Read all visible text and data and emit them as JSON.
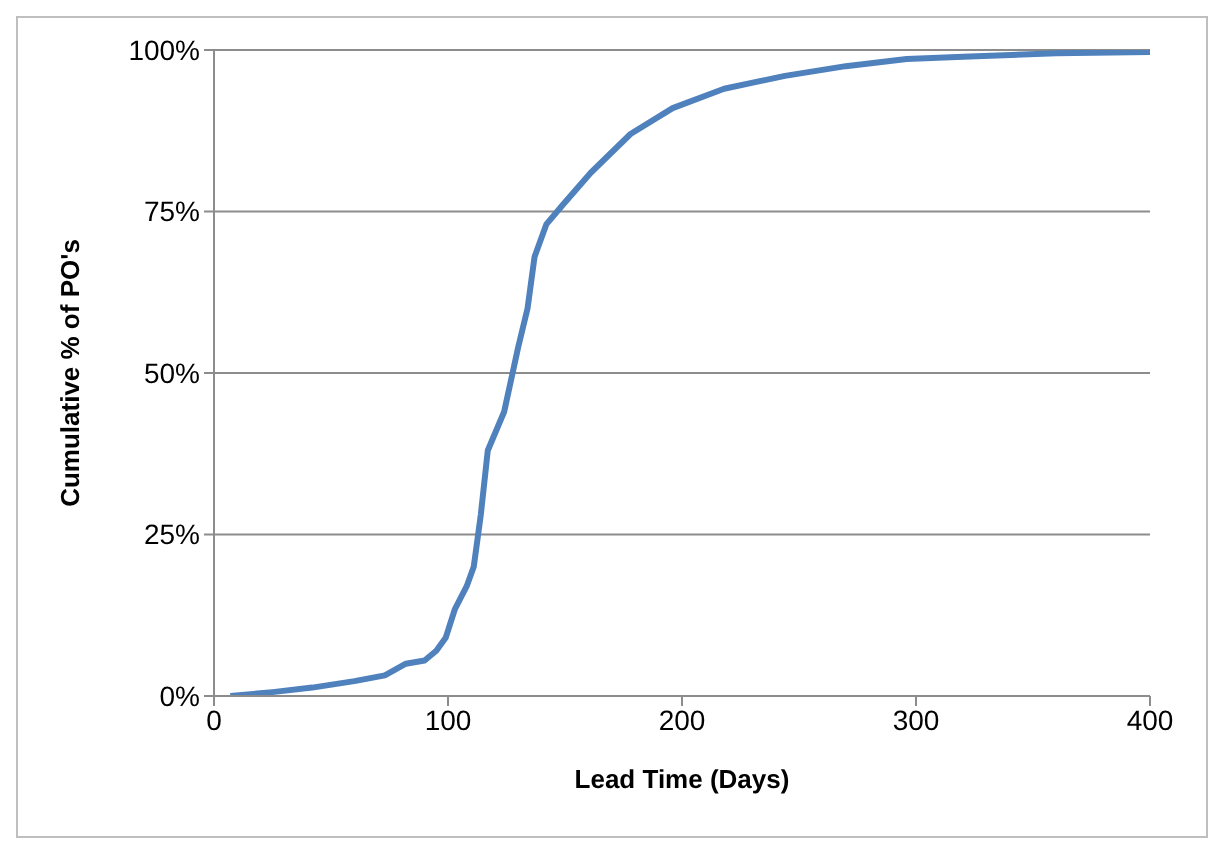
{
  "chart_data": {
    "type": "line",
    "xlabel": "Lead Time (Days)",
    "ylabel": "Cumulative % of PO's",
    "x": [
      7,
      25,
      42,
      60,
      73,
      82,
      90,
      95,
      99,
      103,
      108,
      111,
      114,
      117,
      124,
      130,
      134,
      137,
      142,
      149,
      161,
      178,
      196,
      218,
      244,
      270,
      296,
      323,
      360,
      400
    ],
    "series": [
      {
        "color": "#4f81bd",
        "values": [
          0,
          0.6,
          1.3,
          2.3,
          3.2,
          5,
          5.5,
          7,
          9,
          13.5,
          17,
          20,
          28,
          38,
          44,
          54,
          60,
          68,
          73,
          76,
          81,
          87,
          91,
          94,
          96,
          97.5,
          98.6,
          99,
          99.5,
          99.7
        ]
      }
    ],
    "xlim": [
      0,
      400
    ],
    "xticks": [
      0,
      100,
      200,
      300,
      400
    ],
    "ylim": [
      0,
      100
    ],
    "yticks": [
      {
        "value": 0,
        "label": "0%"
      },
      {
        "value": 25,
        "label": "25%"
      },
      {
        "value": 50,
        "label": "50%"
      },
      {
        "value": 75,
        "label": "75%"
      },
      {
        "value": 100,
        "label": "100%"
      }
    ],
    "grid": "y",
    "marker": "none",
    "line_style": "solid"
  }
}
